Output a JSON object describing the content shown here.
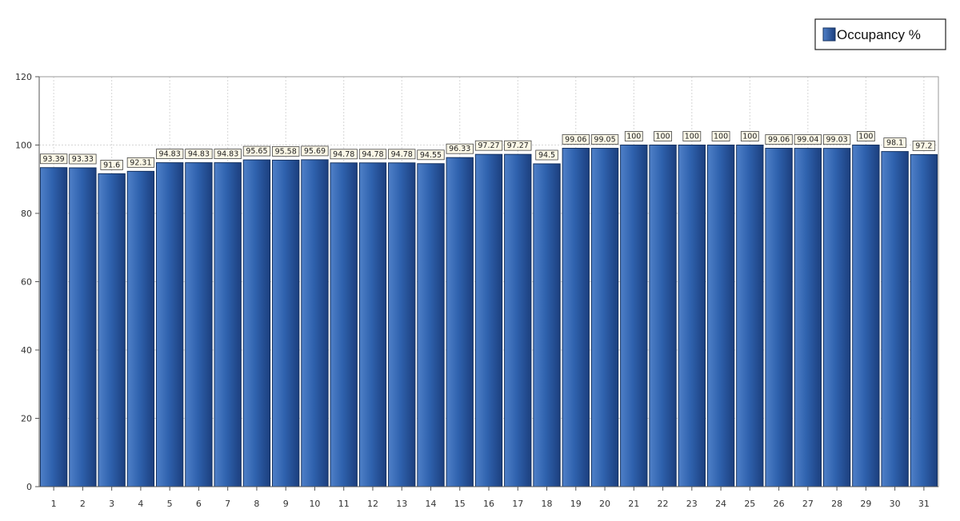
{
  "chart_data": {
    "type": "bar",
    "title": "",
    "xlabel": "",
    "ylabel": "",
    "categories": [
      "1",
      "2",
      "3",
      "4",
      "5",
      "6",
      "7",
      "8",
      "9",
      "10",
      "11",
      "12",
      "13",
      "14",
      "15",
      "16",
      "17",
      "18",
      "19",
      "20",
      "21",
      "22",
      "23",
      "24",
      "25",
      "26",
      "27",
      "28",
      "29",
      "30",
      "31"
    ],
    "series": [
      {
        "name": "Occupancy %",
        "color": "#2a579e",
        "values": [
          93.39,
          93.33,
          91.6,
          92.31,
          94.83,
          94.83,
          94.83,
          95.65,
          95.58,
          95.69,
          94.78,
          94.78,
          94.78,
          94.55,
          96.33,
          97.27,
          97.27,
          94.5,
          99.06,
          99.05,
          100,
          100,
          100,
          100,
          100,
          99.06,
          99.04,
          99.03,
          100,
          98.1,
          97.2
        ]
      }
    ],
    "ylim": [
      0,
      120
    ],
    "yticks": [
      0,
      20,
      40,
      60,
      80,
      100,
      120
    ],
    "grid": true,
    "legend": "top-right",
    "data_labels": true
  }
}
